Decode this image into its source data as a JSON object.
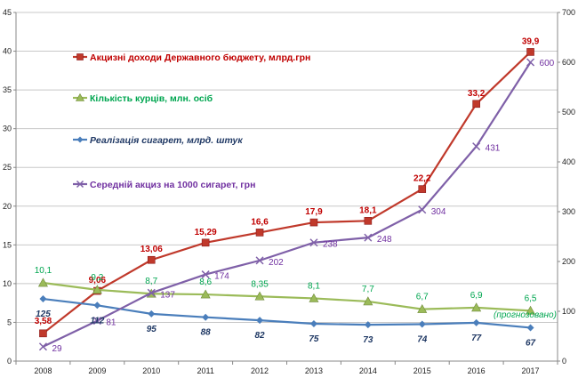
{
  "chart_data": {
    "type": "line",
    "x": [
      "2008",
      "2009",
      "2010",
      "2011",
      "2012",
      "2013",
      "2014",
      "2015",
      "2016",
      "2017"
    ],
    "ylim": [
      0,
      45
    ],
    "yticks": [
      "0",
      "5",
      "10",
      "15",
      "20",
      "25",
      "30",
      "35",
      "40",
      "45"
    ],
    "y2lim": [
      0,
      700
    ],
    "y2ticks": [
      "0",
      "100",
      "200",
      "300",
      "400",
      "500",
      "600",
      "700"
    ],
    "grid": true,
    "legend_position": "top-left",
    "series": [
      {
        "name": "Акцизні доходи Державного бюджету, млрд.грн",
        "axis": "left",
        "color": "#c0392b",
        "label_color": "#c00000",
        "marker": "square",
        "label_weight": "bold",
        "label_style": "normal",
        "values": [
          3.58,
          9.06,
          13.06,
          15.29,
          16.6,
          17.9,
          18.1,
          22.2,
          33.2,
          39.9
        ],
        "labels": [
          "3,58",
          "9,06",
          "13,06",
          "15,29",
          "16,6",
          "17,9",
          "18,1",
          "22,2",
          "33,2",
          "39,9"
        ]
      },
      {
        "name": "Кількість курців, млн. осіб",
        "axis": "left",
        "color": "#9bbb59",
        "label_color": "#00a650",
        "marker": "triangle",
        "label_weight": "normal",
        "label_style": "normal",
        "values": [
          10.1,
          9.2,
          8.7,
          8.6,
          8.35,
          8.1,
          7.7,
          6.7,
          6.9,
          6.5
        ],
        "labels": [
          "10,1",
          "9,2",
          "8,7",
          "8,6",
          "8,35",
          "8,1",
          "7,7",
          "6,7",
          "6,9",
          "6,5"
        ]
      },
      {
        "name": "Реалізація сигарет, млрд. штук",
        "axis": "left",
        "color": "#4a7ebb",
        "label_color": "#1f3864",
        "marker": "diamond",
        "label_weight": "bold",
        "label_style": "italic",
        "values": [
          8.03,
          7.2,
          6.1,
          5.66,
          5.27,
          4.82,
          4.69,
          4.76,
          4.95,
          4.31
        ],
        "labels": [
          "125",
          "112",
          "95",
          "88",
          "82",
          "75",
          "73",
          "74",
          "77",
          "67"
        ]
      },
      {
        "name": "Середній акциз на 1000 сигарет, грн",
        "axis": "right",
        "color": "#7f60a8",
        "label_color": "#7030a0",
        "marker": "x",
        "label_weight": "normal",
        "label_style": "normal",
        "values": [
          29,
          81,
          137,
          174,
          202,
          238,
          248,
          304,
          431,
          600
        ],
        "labels": [
          "29",
          "81",
          "137",
          "174",
          "202",
          "238",
          "248",
          "304",
          "431",
          "600"
        ]
      }
    ],
    "annotation": "(прогнозовано)",
    "annotation_color": "#00a650"
  }
}
